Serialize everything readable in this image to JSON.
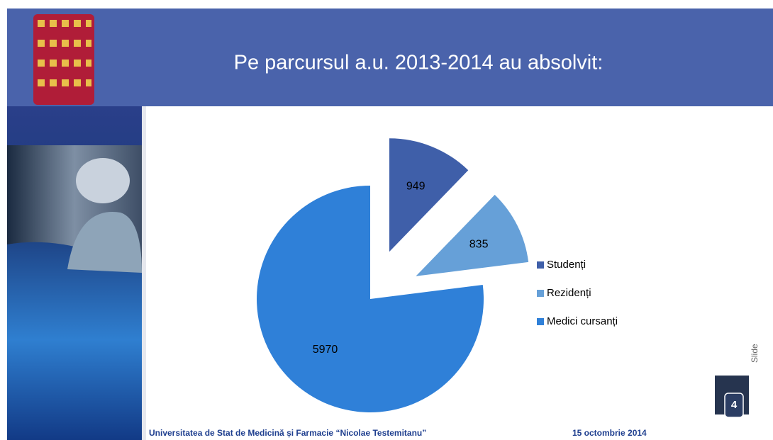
{
  "chart_data": {
    "type": "pie",
    "title": "Pe parcursul a.u. 2013-2014 au absolvit:",
    "categories": [
      "Studenți",
      "Rezidenți",
      "Medici cursanți"
    ],
    "values": [
      949,
      835,
      5970
    ],
    "colors": [
      "#3f5fa9",
      "#66a0d8",
      "#2f80d8"
    ],
    "legend": "right"
  },
  "footer": {
    "institution": "Universitatea de Stat de Medicină și Farmacie “Nicolae Testemitanu”",
    "date": "15 octombrie 2014"
  },
  "slide": {
    "label": "Slide",
    "number": 4
  }
}
